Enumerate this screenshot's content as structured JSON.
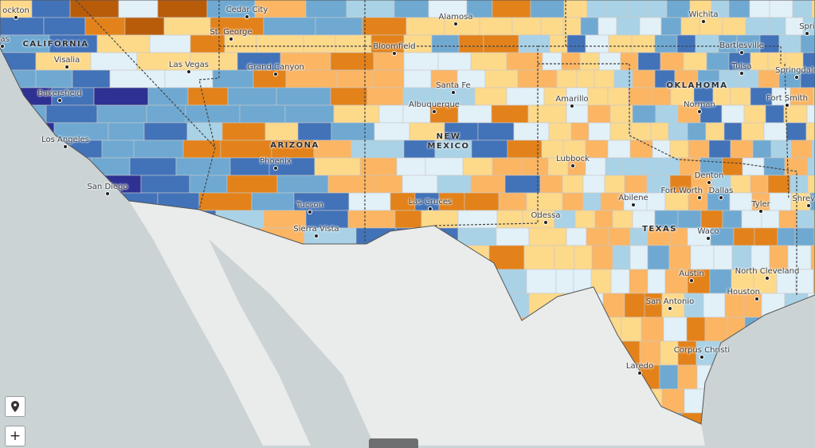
{
  "palette": {
    "ocean": "#cbd3d5",
    "mexico_land": "#eaebeb",
    "dark_blue": "#2e3192",
    "blue": "#4272b8",
    "mid_blue": "#6fa9d2",
    "light_blue": "#a9d2e6",
    "pale_blue": "#e2f0f8",
    "pale_yellow": "#fdd98a",
    "light_orange": "#fbb563",
    "orange": "#e3821a",
    "dark_orange": "#b85c0a"
  },
  "states": [
    {
      "key": "california",
      "label": "CALIFORNIA"
    },
    {
      "key": "arizona",
      "label": "ARIZONA"
    },
    {
      "key": "new_mexico",
      "label": "NEW\nMEXICO"
    },
    {
      "key": "oklahoma",
      "label": "OKLAHOMA"
    },
    {
      "key": "texas",
      "label": "TEXAS"
    }
  ],
  "cities": [
    "ockton",
    "nas",
    "Visalia",
    "Bakersfield",
    "Los Angeles",
    "San Diego",
    "Las Vegas",
    "Cedar City",
    "St. George",
    "Grand Canyon",
    "Phoenix",
    "Tucson",
    "Sierra Vista",
    "Alamosa",
    "Bloomfield",
    "Santa Fe",
    "Albuquerque",
    "Las Cruces",
    "Amarillo",
    "Lubbock",
    "Odessa",
    "Abilene",
    "Wichita",
    "Bartlesville",
    "Tulsa",
    "Springdale",
    "Norman",
    "Fort Smith",
    "Denton",
    "Fort Worth",
    "Dallas",
    "Tyler",
    "Shrevep",
    "Spri",
    "Waco",
    "Austin",
    "North Cleveland",
    "Houston",
    "San Antonio",
    "Corpus Christi",
    "Laredo"
  ],
  "controls": {
    "locate_icon": "map-pin-icon",
    "zoom_in_label": "+"
  }
}
